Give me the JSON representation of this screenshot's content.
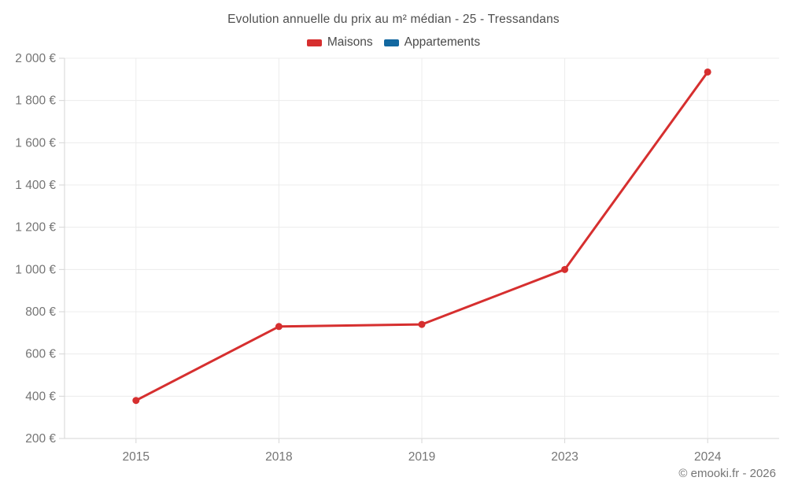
{
  "chart_data": {
    "type": "line",
    "title": "Evolution annuelle du prix au m² médian - 25 - Tressandans",
    "categories": [
      "2015",
      "2018",
      "2019",
      "2023",
      "2024"
    ],
    "series": [
      {
        "name": "Maisons",
        "color": "#d62f2f",
        "values": [
          380,
          730,
          740,
          1000,
          1935
        ]
      },
      {
        "name": "Appartements",
        "color": "#1368a0",
        "values": []
      }
    ],
    "ylim": [
      200,
      2000
    ],
    "ytick_step": 200,
    "ytick_labels": [
      "200 €",
      "400 €",
      "600 €",
      "800 €",
      "1 000 €",
      "1 200 €",
      "1 400 €",
      "1 600 €",
      "1 800 €",
      "2 000 €"
    ],
    "xlabel": "",
    "ylabel": "",
    "grid": true,
    "legend_position": "top-center",
    "currency": "€"
  },
  "footer": {
    "copyright": "© emooki.fr - 2026"
  },
  "colors": {
    "maisons": "#d62f2f",
    "appartements": "#1368a0",
    "grid": "#ececec",
    "axis": "#d6d6d6",
    "title_text": "#4f4f4f",
    "legend_text": "#4a4a4a",
    "tick_text": "#757575",
    "background": "#ffffff"
  }
}
